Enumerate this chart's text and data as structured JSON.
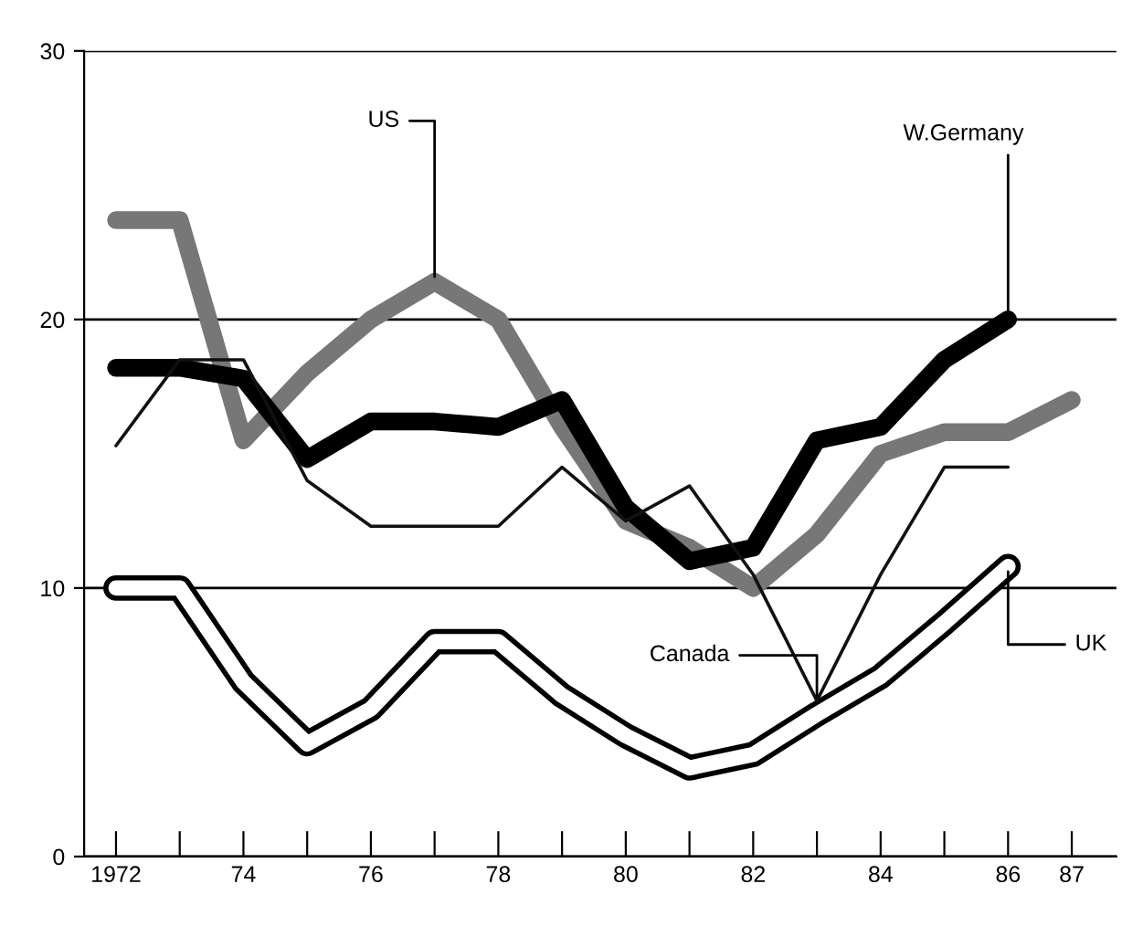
{
  "chart_data": {
    "type": "line",
    "x": [
      1972,
      1973,
      1974,
      1975,
      1976,
      1977,
      1978,
      1979,
      1980,
      1981,
      1982,
      1983,
      1984,
      1985,
      1986,
      1987
    ],
    "series": [
      {
        "name": "US",
        "color": "#777777",
        "values": [
          23.7,
          23.7,
          15.5,
          18,
          20,
          21.4,
          20,
          16,
          12.5,
          11.5,
          10,
          12,
          15,
          15.8,
          15.8,
          17
        ]
      },
      {
        "name": "W.Germany",
        "color": "#000000",
        "values": [
          18.2,
          18.2,
          17.8,
          14.8,
          16.2,
          16.2,
          16,
          17,
          13,
          11,
          11.5,
          15.5,
          16,
          18.5,
          20,
          null
        ]
      },
      {
        "name": "Canada",
        "color": "#111111",
        "values": [
          15.3,
          18.5,
          18.5,
          14,
          12.3,
          12.3,
          12.3,
          14.5,
          12.5,
          13.8,
          10.5,
          5.8,
          10.5,
          14.5,
          14.5,
          null
        ]
      },
      {
        "name": "UK",
        "color": "#000000",
        "values": [
          10,
          10,
          6.5,
          4.2,
          5.5,
          8,
          8,
          6,
          4.5,
          3.3,
          3.8,
          5.3,
          6.7,
          8.7,
          10.8,
          null
        ]
      }
    ],
    "xlim": [
      1971.5,
      1987.7
    ],
    "ylim": [
      0,
      30
    ],
    "yticks": [
      0,
      10,
      20,
      30
    ],
    "xticks": [
      1972,
      {
        "value": 1973,
        "label": null
      },
      {
        "value": 1974,
        "label": "74"
      },
      {
        "value": 1975,
        "label": null
      },
      {
        "value": 1976,
        "label": "76"
      },
      {
        "value": 1977,
        "label": null
      },
      {
        "value": 1978,
        "label": "78"
      },
      {
        "value": 1979,
        "label": null
      },
      {
        "value": 1980,
        "label": "80"
      },
      {
        "value": 1981,
        "label": null
      },
      {
        "value": 1982,
        "label": "82"
      },
      {
        "value": 1983,
        "label": null
      },
      {
        "value": 1984,
        "label": "84"
      },
      {
        "value": 1985,
        "label": null
      },
      {
        "value": 1986,
        "label": "86"
      },
      {
        "value": 1987,
        "label": "87"
      }
    ],
    "grid": "y",
    "legend": false,
    "line_style": "solid",
    "marker": "none"
  }
}
